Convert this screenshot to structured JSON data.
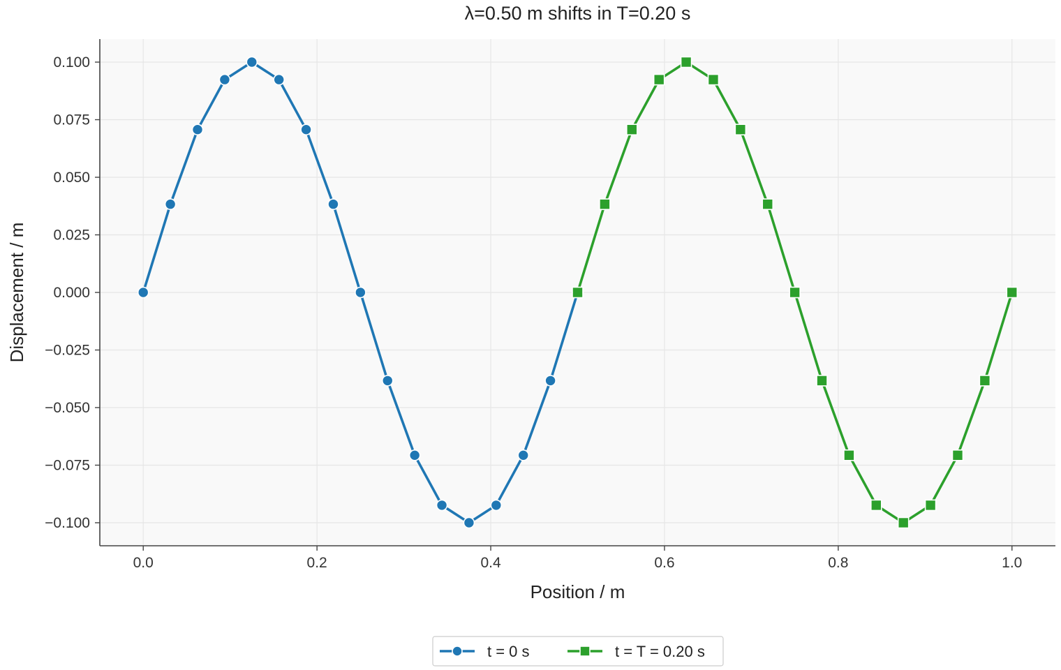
{
  "chart_data": {
    "type": "line",
    "title": "λ=0.50 m shifts in T=0.20 s",
    "xlabel": "Position / m",
    "ylabel": "Displacement / m",
    "xlim": [
      -0.05,
      1.05
    ],
    "ylim": [
      -0.11,
      0.11
    ],
    "x_ticks": [
      0.0,
      0.2,
      0.4,
      0.6,
      0.8,
      1.0
    ],
    "x_tick_labels": [
      "0.0",
      "0.2",
      "0.4",
      "0.6",
      "0.8",
      "1.0"
    ],
    "y_ticks": [
      0.1,
      0.075,
      0.05,
      0.025,
      0.0,
      -0.025,
      -0.05,
      -0.075,
      -0.1
    ],
    "y_tick_labels": [
      "0.100",
      "0.075",
      "0.050",
      "0.025",
      "0.000",
      "−0.025",
      "−0.050",
      "−0.075",
      "−0.100"
    ],
    "grid": true,
    "legend_position": "bottom-center",
    "series": [
      {
        "name": "t = 0 s",
        "color": "#1f77b4",
        "marker": "circle",
        "x": [
          0.0,
          0.03125,
          0.0625,
          0.09375,
          0.125,
          0.15625,
          0.1875,
          0.21875,
          0.25,
          0.28125,
          0.3125,
          0.34375,
          0.375,
          0.40625,
          0.4375,
          0.46875,
          0.5
        ],
        "y": [
          0.0,
          0.0383,
          0.0707,
          0.0924,
          0.1,
          0.0924,
          0.0707,
          0.0383,
          0.0,
          -0.0383,
          -0.0707,
          -0.0924,
          -0.1,
          -0.0924,
          -0.0707,
          -0.0383,
          0.0
        ]
      },
      {
        "name": "t = T = 0.20 s",
        "color": "#2ca02c",
        "marker": "square",
        "x": [
          0.5,
          0.53125,
          0.5625,
          0.59375,
          0.625,
          0.65625,
          0.6875,
          0.71875,
          0.75,
          0.78125,
          0.8125,
          0.84375,
          0.875,
          0.90625,
          0.9375,
          0.96875,
          1.0
        ],
        "y": [
          0.0,
          0.0383,
          0.0707,
          0.0924,
          0.1,
          0.0924,
          0.0707,
          0.0383,
          0.0,
          -0.0383,
          -0.0707,
          -0.0924,
          -0.1,
          -0.0924,
          -0.0707,
          -0.0383,
          0.0
        ]
      }
    ]
  }
}
